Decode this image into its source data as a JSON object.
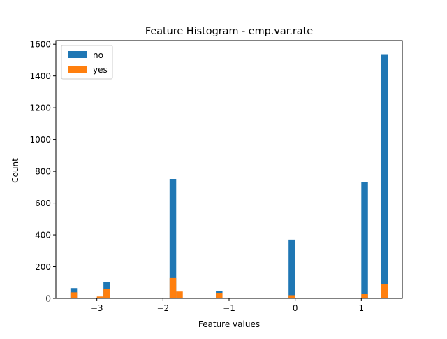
{
  "chart_data": {
    "type": "bar",
    "title": "Feature Histogram - emp.var.rate",
    "xlabel": "Feature values",
    "ylabel": "Count",
    "xlim": [
      -3.62,
      1.62
    ],
    "ylim": [
      0,
      1600
    ],
    "x_ticks": [
      {
        "value": -3,
        "label": "−3"
      },
      {
        "value": -2,
        "label": "−2"
      },
      {
        "value": -1,
        "label": "−1"
      },
      {
        "value": 0,
        "label": "0"
      },
      {
        "value": 1,
        "label": "1"
      }
    ],
    "y_ticks": [
      {
        "value": 0,
        "label": "0"
      },
      {
        "value": 200,
        "label": "200"
      },
      {
        "value": 400,
        "label": "400"
      },
      {
        "value": 600,
        "label": "600"
      },
      {
        "value": 800,
        "label": "800"
      },
      {
        "value": 1000,
        "label": "1000"
      },
      {
        "value": 1200,
        "label": "1200"
      },
      {
        "value": 1400,
        "label": "1400"
      },
      {
        "value": 1600,
        "label": "1600"
      }
    ],
    "grid": false,
    "legend_position": "upper-left",
    "series": [
      {
        "name": "no",
        "color": "#1f77b4",
        "bins": [
          {
            "x0": -3.4,
            "x1": -3.3,
            "count": 65
          },
          {
            "x0": -2.9,
            "x1": -2.8,
            "count": 105
          },
          {
            "x0": -1.9,
            "x1": -1.8,
            "count": 752
          },
          {
            "x0": -1.2,
            "x1": -1.1,
            "count": 48
          },
          {
            "x0": -0.1,
            "x1": 0.0,
            "count": 370
          },
          {
            "x0": 1.0,
            "x1": 1.1,
            "count": 733
          },
          {
            "x0": 1.3,
            "x1": 1.4,
            "count": 1537
          }
        ]
      },
      {
        "name": "yes",
        "color": "#ff7f0e",
        "bins": [
          {
            "x0": -3.4,
            "x1": -3.3,
            "count": 38
          },
          {
            "x0": -3.0,
            "x1": -2.9,
            "count": 12
          },
          {
            "x0": -2.9,
            "x1": -2.8,
            "count": 58
          },
          {
            "x0": -1.9,
            "x1": -1.8,
            "count": 128
          },
          {
            "x0": -1.8,
            "x1": -1.7,
            "count": 43
          },
          {
            "x0": -1.2,
            "x1": -1.1,
            "count": 35
          },
          {
            "x0": -0.1,
            "x1": 0.0,
            "count": 20
          },
          {
            "x0": 1.0,
            "x1": 1.1,
            "count": 28
          },
          {
            "x0": 1.3,
            "x1": 1.4,
            "count": 90
          }
        ]
      }
    ]
  }
}
